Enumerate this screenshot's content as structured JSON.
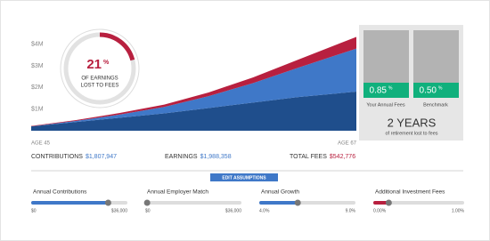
{
  "chart_data": {
    "type": "area",
    "stacked": true,
    "x": [
      45,
      48,
      51,
      54,
      57,
      60,
      63,
      67
    ],
    "series": [
      {
        "name": "Contributions",
        "color": "#1f4e8c",
        "values": [
          0.2,
          0.4,
          0.6,
          0.8,
          1.05,
          1.3,
          1.55,
          1.81
        ]
      },
      {
        "name": "Earnings",
        "color": "#3f78c8",
        "values": [
          0,
          0.05,
          0.15,
          0.3,
          0.55,
          0.9,
          1.35,
          1.99
        ]
      },
      {
        "name": "Fees",
        "color": "#b8203f",
        "values": [
          0.02,
          0.04,
          0.07,
          0.11,
          0.17,
          0.26,
          0.37,
          0.54
        ]
      }
    ],
    "xlim": [
      45,
      67
    ],
    "xticks": [
      {
        "value": 45,
        "label": "AGE 45"
      },
      {
        "value": 67,
        "label": "AGE 67"
      }
    ],
    "ylim": [
      0,
      4.4
    ],
    "yticks": [
      {
        "value": 1,
        "label": "$1M"
      },
      {
        "value": 2,
        "label": "$2M"
      },
      {
        "value": 3,
        "label": "$3M"
      },
      {
        "value": 4,
        "label": "$4M"
      }
    ]
  },
  "donut": {
    "value": 21,
    "unit": "%",
    "caption": [
      "OF EARNINGS",
      "LOST TO FEES"
    ]
  },
  "comparison": {
    "bars": [
      {
        "value": "0.85",
        "unit": "%",
        "label": "Your Annual Fees"
      },
      {
        "value": "0.50",
        "unit": "%",
        "label": "Benchmark"
      }
    ],
    "years": "2 YEARS",
    "years_caption": "of retirement lost to fees"
  },
  "totals": [
    {
      "label": "CONTRIBUTIONS",
      "amount": "$1,807,947"
    },
    {
      "label": "EARNINGS",
      "amount": "$1,988,358"
    },
    {
      "label": "TOTAL FEES",
      "amount": "$542,776"
    }
  ],
  "button": "EDIT ASSUMPTIONS",
  "sliders": [
    {
      "label": "Annual Contributions",
      "min": "$0",
      "max": "$36,000",
      "position": 0.8
    },
    {
      "label": "Annual Employer Match",
      "min": "$0",
      "max": "$36,000",
      "position": 0.02
    },
    {
      "label": "Annual Growth",
      "min": "4.0%",
      "max": "9.0%",
      "position": 0.4
    },
    {
      "label": "Additional Investment Fees",
      "min": "0.00%",
      "max": "1.00%",
      "position": 0.17
    }
  ]
}
